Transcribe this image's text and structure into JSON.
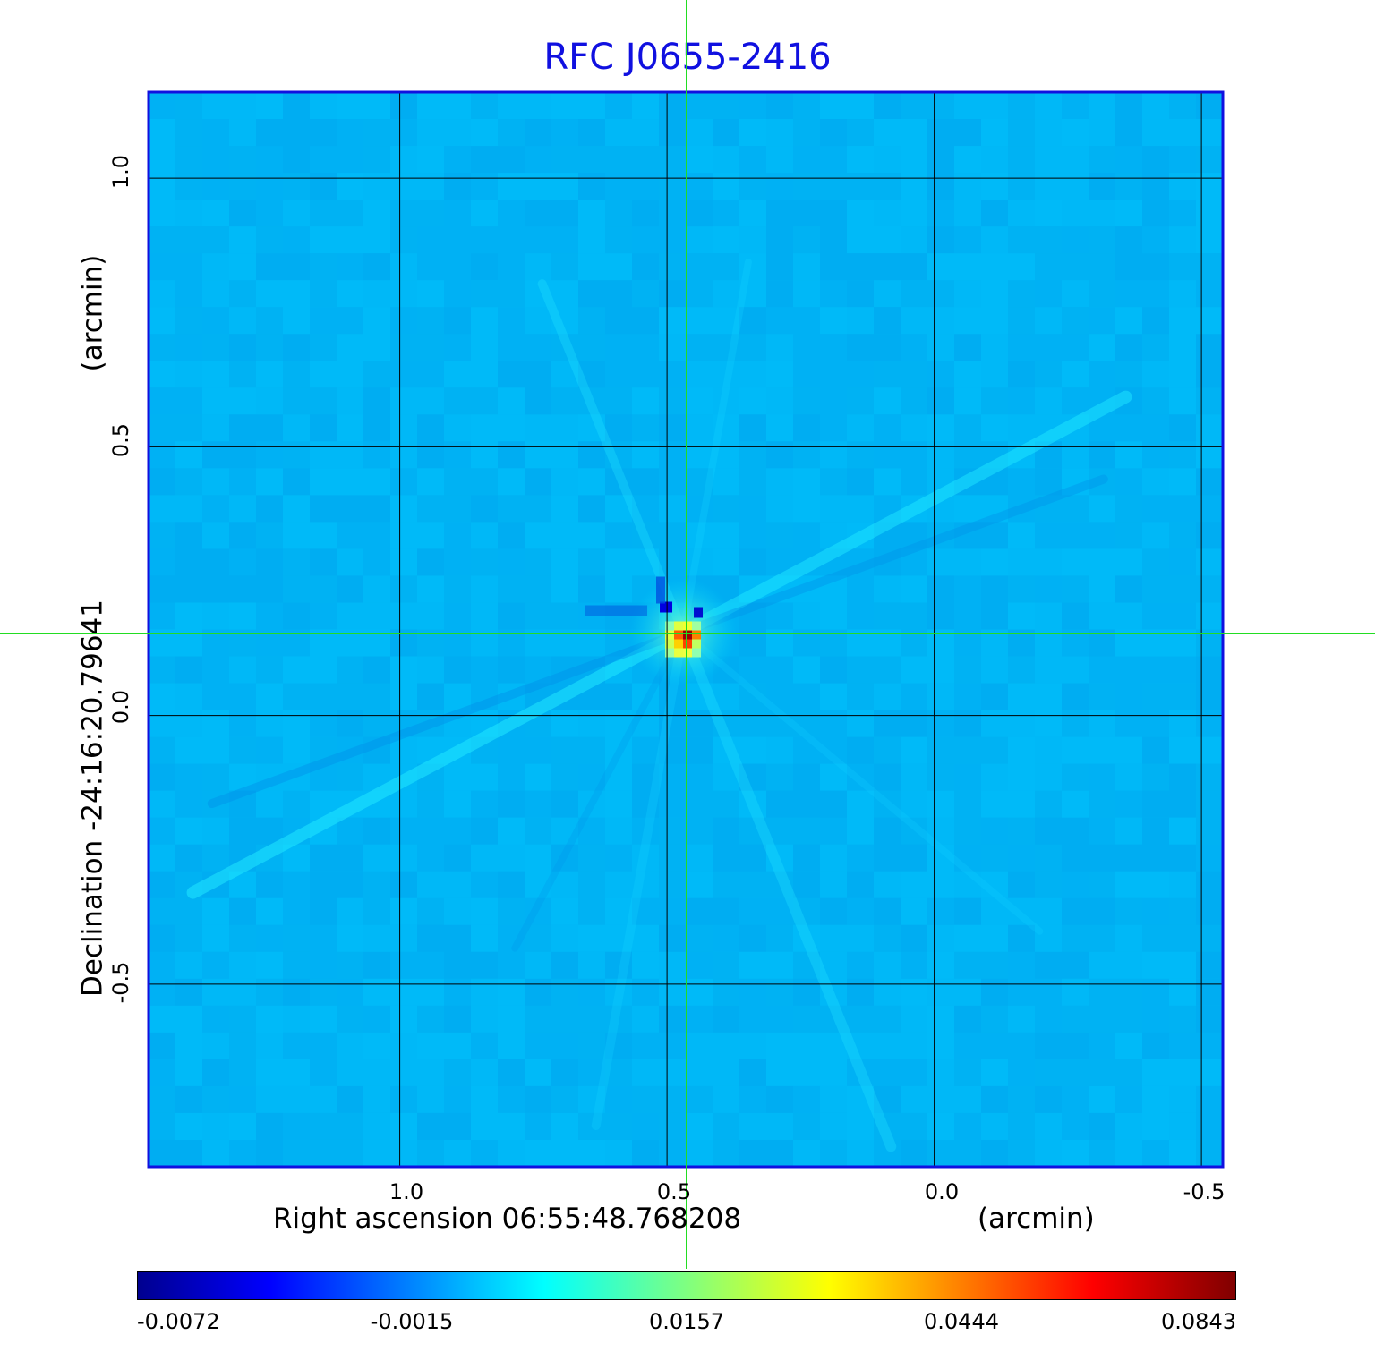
{
  "chart_data": {
    "type": "heatmap",
    "title": "RFC J0655-2416",
    "xlabel": "Right ascension  06:55:48.768208",
    "xunit": "(arcmin)",
    "ylabel": "Declination  -24:16:20.79641",
    "yunit": "(arcmin)",
    "x_ticks": [
      "1.0",
      "0.5",
      "0.0",
      "-0.5"
    ],
    "y_ticks": [
      "1.0",
      "0.5",
      "0.0",
      "-0.5"
    ],
    "xlim": [
      1.47,
      -0.54
    ],
    "ylim": [
      -0.84,
      1.16
    ],
    "grid": true,
    "colormap": "jet",
    "colorbar_ticks": [
      "-0.0072",
      "-0.0015",
      "0.0157",
      "0.0444",
      "0.0843"
    ],
    "colorbar_range": [
      -0.0072,
      0.0843
    ],
    "peak_position": [
      0.47,
      0.155
    ],
    "peak_value": 0.0843,
    "crosshair_color": "#22dd22",
    "frame_color": "#1010e0",
    "background_level": -0.0015
  }
}
